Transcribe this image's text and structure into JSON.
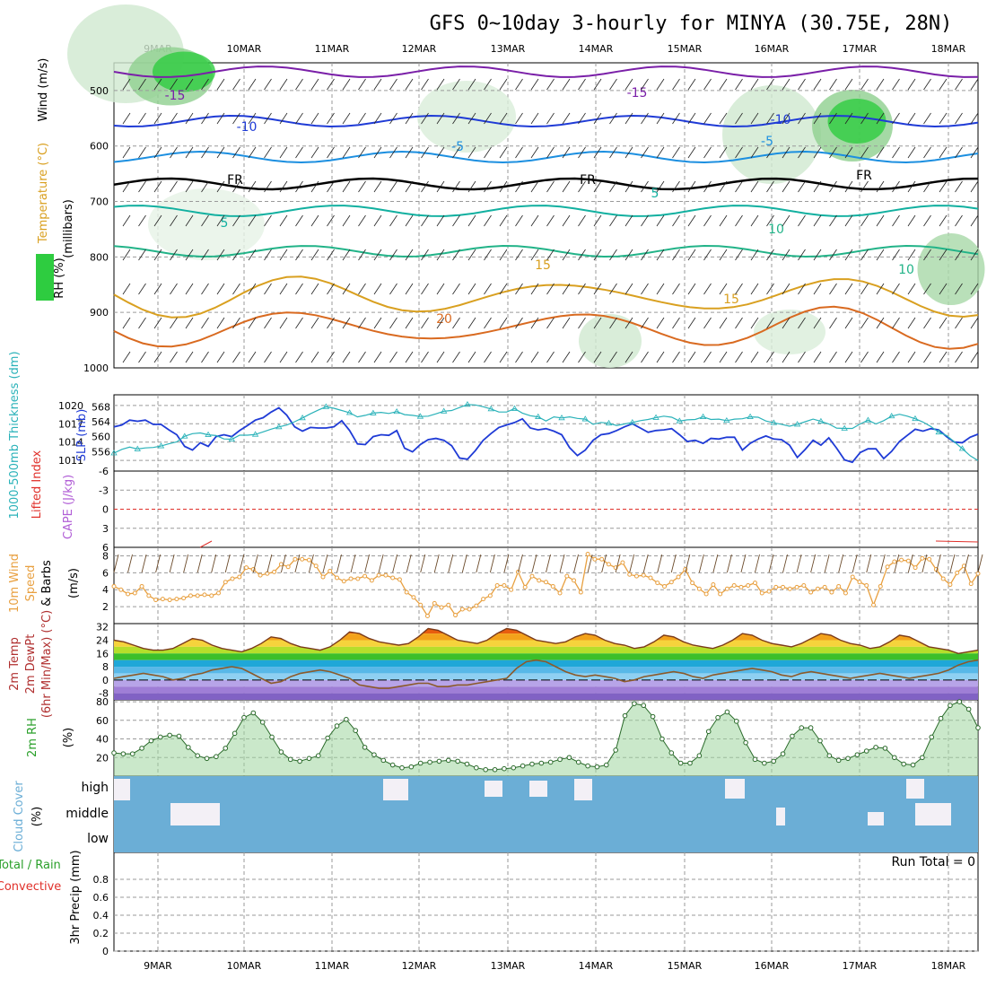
{
  "title": "GFS 0~10day 3-hourly for MINYA (30.75E, 28N)",
  "run_total_label": "Run Total = 0",
  "colors": {
    "grid": "#9a9a9a",
    "rh_green": "#2ecc40",
    "slp": "#1f3bd6",
    "thickness": "#2ab2b9",
    "lifted": "#e0302a",
    "cape": "#b15ed6",
    "wind10": "#e8a040",
    "rh2m": "#2aa02a",
    "cloud": "#6baed6",
    "dewpt": "#8b5a2b"
  },
  "chart_data": [
    {
      "type": "line",
      "panel": "upper-air",
      "dates": [
        "9MAR",
        "10MAR",
        "11MAR",
        "12MAR",
        "13MAR",
        "14MAR",
        "15MAR",
        "16MAR",
        "17MAR",
        "18MAR"
      ],
      "ylabel_parts": [
        "RH (%)",
        "Temperature (°C)",
        "Wind (m/s)",
        "(millibars)"
      ],
      "y_ticks": [
        "500",
        "600",
        "700",
        "800",
        "900",
        "1000"
      ],
      "ylim": [
        1000,
        450
      ],
      "temperature_contours": [
        {
          "label": "-15",
          "values": [
            -15
          ]
        },
        {
          "label": "-10",
          "values": [
            -10
          ]
        },
        {
          "label": "-5",
          "values": [
            -5
          ]
        },
        {
          "label": "FR",
          "values": [
            0
          ]
        },
        {
          "label": "5",
          "values": [
            5
          ]
        },
        {
          "label": "10",
          "values": [
            10
          ]
        },
        {
          "label": "15",
          "values": [
            15
          ]
        },
        {
          "label": "20",
          "values": [
            20
          ]
        }
      ],
      "contour_labels": [
        "-15",
        "-10",
        "-5",
        "FR",
        "5",
        "10",
        "15",
        "20",
        "-15",
        "-10",
        "-5",
        "FR",
        "5",
        "10",
        "15",
        "FR"
      ]
    },
    {
      "type": "line",
      "panel": "slp-thickness",
      "ylabel_left": "1000-500mb Thickness (dm)",
      "ylabel_right": "SLP (mb)",
      "y_ticks_left": [
        "568",
        "564",
        "560",
        "556"
      ],
      "y_ticks_right": [
        "1020",
        "1017",
        "1014",
        "1011"
      ],
      "series": [
        {
          "name": "SLP (mb)",
          "values": [
            1016.5,
            1016.8,
            1017.6,
            1017.4,
            1017.6,
            1016.9,
            1016.9,
            1016.0,
            1015.2,
            1013.3,
            1012.7,
            1013.9,
            1013.3,
            1014.9,
            1015.2,
            1014.9,
            1015.9,
            1016.7,
            1017.6,
            1018.0,
            1018.9,
            1019.6,
            1018.4,
            1016.5,
            1015.8,
            1016.4,
            1016.3,
            1016.3,
            1016.5,
            1017.5,
            1015.9,
            1013.7,
            1013.6,
            1014.9,
            1015.2,
            1015.1,
            1015.9,
            1013.0,
            1012.4,
            1013.6,
            1014.4,
            1014.6,
            1014.3,
            1013.4,
            1011.4,
            1011.2,
            1012.6,
            1014.3,
            1015.4,
            1016.4,
            1016.8,
            1017.2,
            1017.8,
            1016.3,
            1016.0,
            1016.2,
            1015.8,
            1015.2,
            1013.1,
            1011.8,
            1012.7,
            1014.3,
            1015.2,
            1015.4,
            1015.9,
            1016.5,
            1017.0,
            1016.3,
            1015.6,
            1015.9,
            1016.0,
            1016.2,
            1015.2,
            1014.1,
            1014.3,
            1013.8,
            1014.6,
            1014.5,
            1014.8,
            1014.8,
            1012.7,
            1013.8,
            1014.5,
            1015.0,
            1014.5,
            1014.4,
            1013.5,
            1011.5,
            1012.8,
            1014.3,
            1013.5,
            1014.7,
            1013.0,
            1011.1,
            1010.7,
            1012.3,
            1012.9,
            1012.9,
            1011.3,
            1012.5,
            1014.1,
            1015.1,
            1016.1,
            1015.8,
            1016.2,
            1016.0,
            1014.9,
            1014.0,
            1013.9,
            1014.8,
            1015.3
          ]
        },
        {
          "name": "Thickness (dm)",
          "values": [
            555.6,
            556.6,
            557.2,
            556.7,
            557.0,
            557.1,
            557.5,
            558.1,
            558.6,
            560.1,
            560.8,
            561.0,
            560.5,
            560.3,
            559.4,
            559.3,
            560.4,
            560.4,
            560.6,
            561.3,
            562.0,
            562.6,
            563.1,
            564.0,
            565.0,
            566.1,
            567.1,
            568.0,
            567.6,
            567.0,
            566.4,
            565.3,
            565.7,
            566.3,
            566.5,
            566.2,
            566.7,
            565.9,
            565.7,
            565.4,
            565.5,
            566.1,
            566.8,
            567.0,
            567.8,
            568.6,
            568.5,
            568.0,
            567.4,
            566.6,
            566.6,
            567.5,
            566.3,
            565.6,
            565.3,
            564.2,
            565.3,
            565.0,
            565.3,
            564.9,
            564.7,
            563.3,
            563.8,
            563.6,
            563.0,
            563.4,
            563.8,
            564.3,
            564.6,
            565.1,
            565.5,
            565.2,
            564.2,
            564.5,
            564.6,
            565.3,
            564.6,
            564.7,
            564.3,
            564.7,
            564.8,
            565.3,
            565.2,
            564.2,
            563.7,
            563.3,
            562.8,
            563.3,
            564.0,
            564.7,
            564.1,
            563.4,
            562.3,
            562.2,
            562.2,
            563.4,
            564.4,
            563.4,
            564.3,
            565.5,
            566.0,
            565.5,
            564.8,
            563.9,
            562.7,
            561.2,
            560.3,
            558.6,
            556.8,
            554.9,
            553.6
          ]
        }
      ]
    },
    {
      "type": "line",
      "panel": "stability",
      "ylabel_left": "Lifted Index",
      "ylabel_right": "CAPE (J/kg)",
      "y_ticks": [
        "-6",
        "-3",
        "0",
        "3",
        "6"
      ],
      "ylim": [
        -6,
        6
      ],
      "series": [
        {
          "name": "Lifted Index",
          "values": [
            6,
            6,
            6,
            6,
            6,
            6,
            6,
            6,
            6,
            6,
            6,
            6,
            6,
            6,
            6,
            6,
            6,
            6,
            6,
            6,
            6,
            6,
            6,
            6,
            6,
            6,
            6,
            6,
            6,
            6,
            6,
            6,
            6,
            6,
            6,
            6,
            6,
            6,
            6,
            6,
            6,
            6,
            6,
            6,
            6,
            6,
            6,
            6,
            6,
            6,
            6,
            6,
            6,
            6,
            6,
            6,
            6,
            6,
            6,
            6,
            6,
            6,
            6,
            6,
            6,
            6,
            6,
            6,
            6,
            6,
            6,
            6,
            6,
            6,
            6,
            6,
            6,
            6,
            6,
            6,
            6,
            6,
            6,
            6,
            6,
            6,
            6,
            6,
            6,
            6,
            6,
            6,
            6,
            6,
            6,
            6,
            6,
            6,
            6,
            6,
            6,
            6,
            6,
            6,
            6,
            6,
            6,
            6,
            6,
            6,
            6
          ]
        }
      ]
    },
    {
      "type": "line",
      "panel": "wind10m",
      "ylabel_parts": [
        "10m Wind",
        "Speed",
        "& Barbs",
        "(m/s)"
      ],
      "y_ticks": [
        "8",
        "6",
        "4",
        "2"
      ],
      "ylim": [
        0,
        9
      ],
      "series": [
        {
          "name": "10m Wind Speed (m/s)",
          "values": [
            4.4,
            4.0,
            3.5,
            3.6,
            4.4,
            3.3,
            2.8,
            2.9,
            2.8,
            2.9,
            3.0,
            3.3,
            3.3,
            3.4,
            3.3,
            3.6,
            4.9,
            5.3,
            5.5,
            6.6,
            6.4,
            5.7,
            5.9,
            6.1,
            7.0,
            6.7,
            7.6,
            7.6,
            7.5,
            6.8,
            5.5,
            6.2,
            5.4,
            5.0,
            5.3,
            5.3,
            5.6,
            5.1,
            5.7,
            5.7,
            5.4,
            5.2,
            3.7,
            3.1,
            2.2,
            0.9,
            2.4,
            1.9,
            2.2,
            1.0,
            1.7,
            1.7,
            2.1,
            2.9,
            3.3,
            4.5,
            4.5,
            4.0,
            6.1,
            4.3,
            5.6,
            5.1,
            4.9,
            4.4,
            3.6,
            5.6,
            5.1,
            3.7,
            8.2,
            7.6,
            7.6,
            7.0,
            6.6,
            7.2,
            5.8,
            5.6,
            5.7,
            5.4,
            4.8,
            4.4,
            4.9,
            5.5,
            6.4,
            4.8,
            4.1,
            3.5,
            4.6,
            3.5,
            4.1,
            4.5,
            4.3,
            4.5,
            4.8,
            3.6,
            3.8,
            4.3,
            4.3,
            4.1,
            4.3,
            4.5,
            3.7,
            4.1,
            4.3,
            3.7,
            4.4,
            3.6,
            5.5,
            4.9,
            4.5,
            2.2,
            4.4,
            6.7,
            7.3,
            7.5,
            7.4,
            6.6,
            7.7,
            7.6,
            6.4,
            5.3,
            4.6,
            6.0,
            6.8,
            4.7,
            5.9
          ]
        }
      ]
    },
    {
      "type": "line",
      "panel": "temperature2m",
      "ylabel_parts": [
        "2m Temp",
        "2m DewPt",
        "(6hr Min/Max) (°C)"
      ],
      "y_ticks": [
        "32",
        "24",
        "16",
        "8",
        "0",
        "-8"
      ],
      "ylim": [
        -12,
        34
      ],
      "series": [
        {
          "name": "2m Temp (°C)",
          "values": [
            24,
            23,
            21,
            19,
            18,
            18,
            19,
            22,
            25,
            24,
            21,
            19,
            18,
            17,
            19,
            22,
            26,
            25,
            22,
            20,
            19,
            18,
            20,
            24,
            29,
            28,
            25,
            23,
            22,
            21,
            22,
            26,
            31,
            30,
            27,
            24,
            23,
            22,
            24,
            28,
            31,
            30,
            27,
            24,
            23,
            22,
            23,
            26,
            28,
            27,
            24,
            22,
            21,
            19,
            20,
            23,
            27,
            26,
            23,
            21,
            20,
            19,
            21,
            24,
            28,
            27,
            24,
            22,
            21,
            20,
            22,
            25,
            28,
            27,
            24,
            22,
            21,
            19,
            20,
            23,
            27,
            26,
            23,
            20,
            19,
            18,
            16,
            17,
            18
          ]
        },
        {
          "name": "2m DewPt (°C)",
          "values": [
            1,
            2,
            3,
            4,
            3,
            2,
            0,
            1,
            3,
            4,
            6,
            7,
            8,
            7,
            4,
            1,
            -2,
            -1,
            2,
            4,
            5,
            6,
            5,
            3,
            1,
            -3,
            -4,
            -5,
            -5,
            -4,
            -3,
            -2,
            -2,
            -4,
            -4,
            -3,
            -3,
            -2,
            -1,
            0,
            1,
            7,
            11,
            12,
            11,
            8,
            5,
            3,
            2,
            3,
            2,
            1,
            -1,
            0,
            2,
            3,
            4,
            5,
            4,
            2,
            1,
            3,
            4,
            5,
            6,
            7,
            6,
            5,
            3,
            2,
            4,
            5,
            4,
            3,
            2,
            1,
            2,
            3,
            4,
            3,
            2,
            1,
            2,
            3,
            4,
            6,
            9,
            11,
            12
          ]
        }
      ]
    },
    {
      "type": "area",
      "panel": "rh2m",
      "ylabel_parts": [
        "2m RH",
        "(%)"
      ],
      "y_ticks": [
        "80",
        "60",
        "40",
        "20"
      ],
      "ylim": [
        0,
        82
      ],
      "series": [
        {
          "name": "2m RH (%)",
          "values": [
            25,
            24,
            24,
            30,
            38,
            42,
            44,
            43,
            31,
            22,
            19,
            21,
            30,
            46,
            63,
            68,
            58,
            42,
            26,
            18,
            16,
            19,
            22,
            41,
            54,
            61,
            49,
            31,
            23,
            17,
            12,
            9,
            10,
            14,
            15,
            16,
            17,
            16,
            13,
            9,
            7,
            7,
            8,
            9,
            11,
            13,
            14,
            15,
            18,
            20,
            15,
            11,
            10,
            12,
            28,
            65,
            78,
            76,
            64,
            40,
            25,
            14,
            14,
            22,
            48,
            63,
            69,
            59,
            36,
            18,
            14,
            16,
            24,
            43,
            52,
            52,
            38,
            22,
            17,
            19,
            23,
            27,
            31,
            30,
            20,
            13,
            12,
            20,
            42,
            62,
            76,
            80,
            72,
            52
          ]
        }
      ]
    },
    {
      "type": "heatmap",
      "panel": "cloud",
      "ylabel_parts": [
        "Cloud Cover",
        "(%)"
      ],
      "row_labels": [
        "high",
        "middle",
        "low"
      ]
    },
    {
      "type": "bar",
      "panel": "precip",
      "ylabel_parts": [
        "Total / Rain",
        "Convective",
        "3hr Precip (mm)"
      ],
      "y_ticks": [
        "0.8",
        "0.6",
        "0.4",
        "0.2",
        "0"
      ],
      "ylim": [
        0,
        1.0
      ],
      "series": [
        {
          "name": "3hr Precip (mm)",
          "values": [
            0,
            0,
            0,
            0,
            0,
            0,
            0,
            0,
            0,
            0,
            0,
            0,
            0,
            0,
            0,
            0,
            0,
            0,
            0,
            0,
            0,
            0,
            0,
            0,
            0,
            0,
            0,
            0,
            0,
            0,
            0,
            0,
            0,
            0,
            0,
            0,
            0,
            0,
            0,
            0,
            0,
            0,
            0,
            0,
            0,
            0,
            0,
            0,
            0,
            0,
            0,
            0,
            0,
            0,
            0,
            0,
            0,
            0,
            0,
            0,
            0,
            0,
            0,
            0,
            0,
            0,
            0,
            0,
            0,
            0,
            0,
            0,
            0,
            0,
            0,
            0,
            0,
            0,
            0,
            0,
            0,
            0,
            0,
            0,
            0
          ]
        }
      ]
    }
  ]
}
